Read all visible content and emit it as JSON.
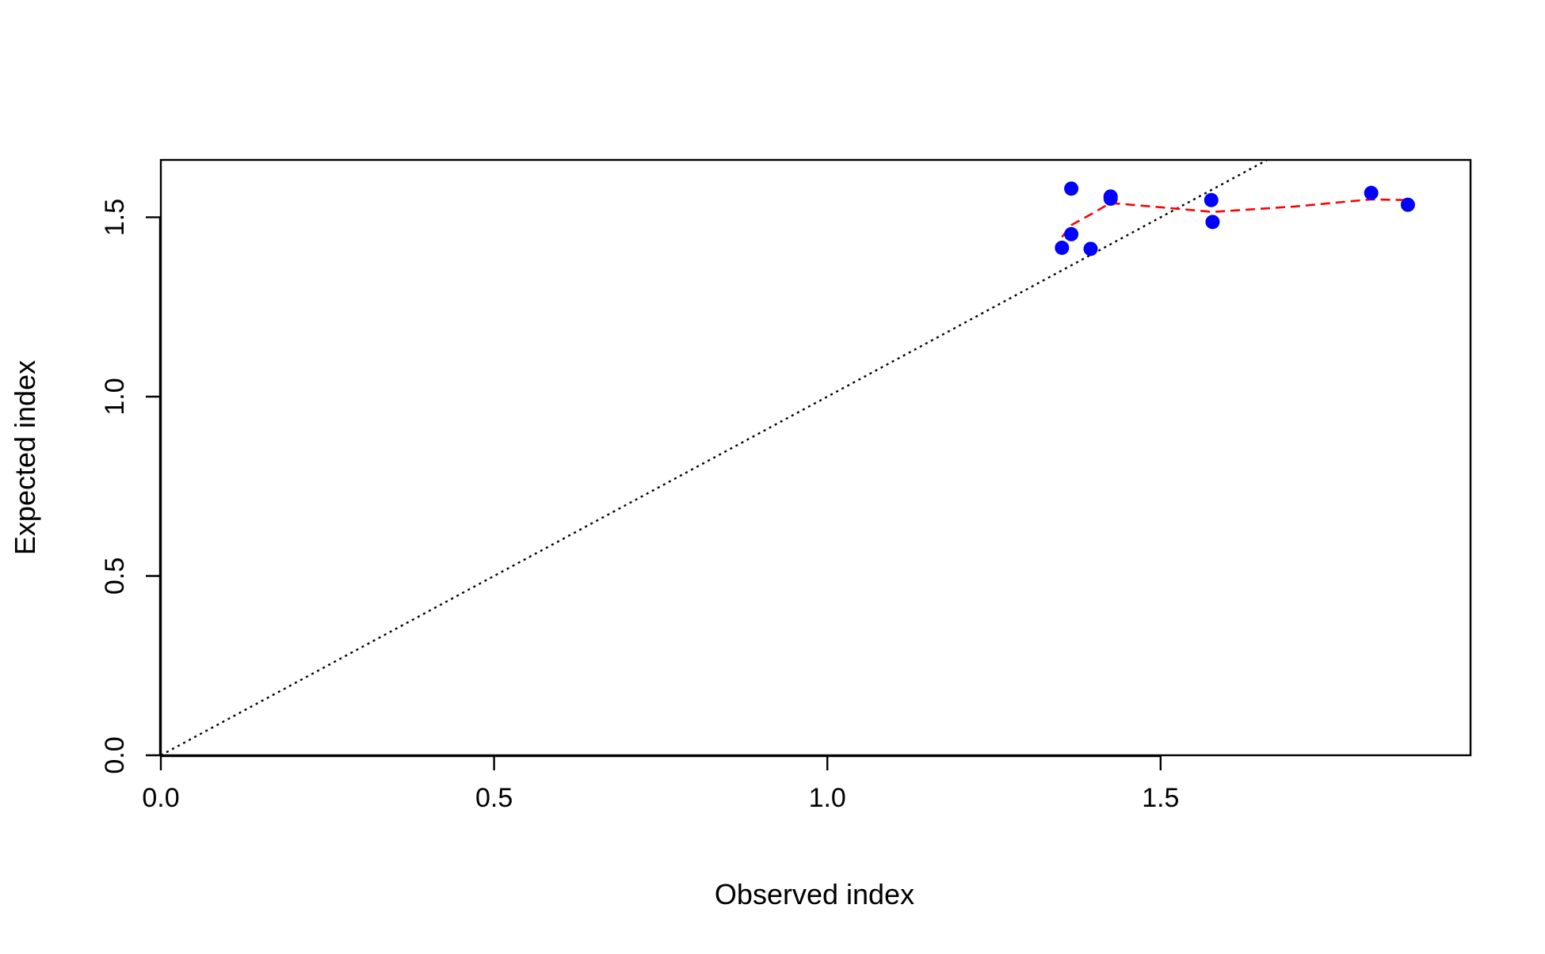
{
  "chart_data": {
    "type": "scatter",
    "title": "",
    "xlabel": "Observed index",
    "ylabel": "Expected index",
    "xlim": [
      0,
      1.965
    ],
    "ylim": [
      0,
      1.66
    ],
    "xticks": [
      0.0,
      0.5,
      1.0,
      1.5
    ],
    "xtick_labels": [
      "0.0",
      "0.5",
      "1.0",
      "1.5"
    ],
    "yticks": [
      0.0,
      0.5,
      1.0,
      1.5
    ],
    "ytick_labels": [
      "0.0",
      "0.5",
      "1.0",
      "1.5"
    ],
    "grid": false,
    "legend": "none",
    "series": [
      {
        "kind": "points",
        "color": "#0000FF",
        "x": [
          1.352,
          1.366,
          1.366,
          1.395,
          1.425,
          1.425,
          1.576,
          1.578,
          1.816,
          1.871
        ],
        "y": [
          1.415,
          1.453,
          1.58,
          1.412,
          1.558,
          1.552,
          1.548,
          1.487,
          1.568,
          1.535
        ]
      },
      {
        "kind": "smooth-line",
        "style": "dashed",
        "color": "#FF0000",
        "x": [
          1.352,
          1.366,
          1.395,
          1.425,
          1.5,
          1.578,
          1.7,
          1.816,
          1.871
        ],
        "y": [
          1.445,
          1.478,
          1.508,
          1.54,
          1.528,
          1.515,
          1.53,
          1.55,
          1.548
        ]
      },
      {
        "kind": "reference-line",
        "style": "dotted",
        "color": "#000000",
        "x": [
          0,
          1.66
        ],
        "y": [
          0,
          1.66
        ]
      }
    ]
  }
}
